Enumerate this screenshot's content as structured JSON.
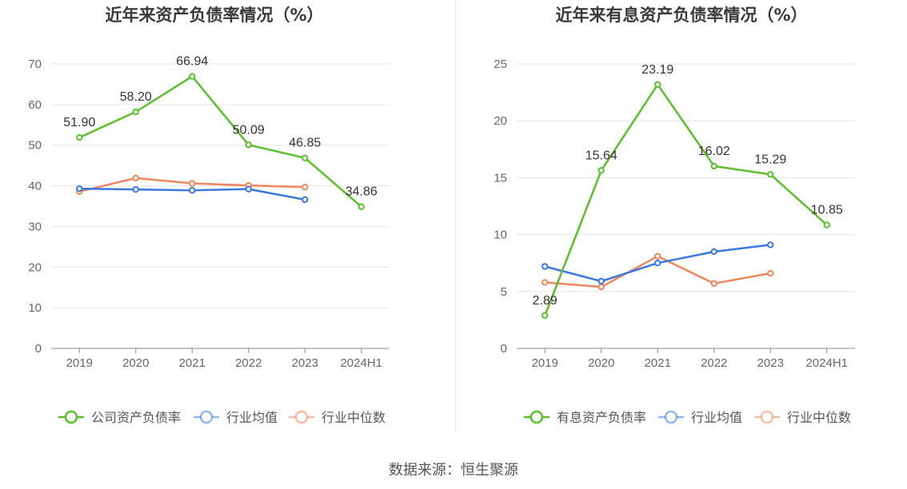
{
  "source_text": "数据来源：恒生聚源",
  "chart_data": [
    {
      "type": "line",
      "title": "近年来资产负债率情况（%）",
      "categories": [
        "2019",
        "2020",
        "2021",
        "2022",
        "2023",
        "2024H1"
      ],
      "ylim": [
        0,
        70
      ],
      "yticks": [
        0,
        10,
        20,
        30,
        40,
        50,
        60,
        70
      ],
      "grid": true,
      "legend": "bottom",
      "series": [
        {
          "name": "公司资产负债率",
          "color": "#5ac02a",
          "values": [
            51.9,
            58.2,
            66.94,
            50.09,
            46.85,
            34.86
          ],
          "labels": [
            "51.90",
            "58.20",
            "66.94",
            "50.09",
            "46.85",
            "34.86"
          ]
        },
        {
          "name": "行业均值",
          "color": "#3b78e0",
          "values": [
            39.3,
            39.1,
            38.9,
            39.2,
            36.6,
            null
          ]
        },
        {
          "name": "行业中位数",
          "color": "#f0865c",
          "values": [
            38.6,
            41.9,
            40.6,
            40.1,
            39.7,
            null
          ]
        }
      ]
    },
    {
      "type": "line",
      "title": "近年来有息资产负债率情况（%）",
      "categories": [
        "2019",
        "2020",
        "2021",
        "2022",
        "2023",
        "2024H1"
      ],
      "ylim": [
        0,
        25
      ],
      "yticks": [
        0,
        5,
        10,
        15,
        20,
        25
      ],
      "grid": true,
      "legend": "bottom",
      "series": [
        {
          "name": "有息资产负债率",
          "color": "#5ac02a",
          "values": [
            2.89,
            15.64,
            23.19,
            16.02,
            15.29,
            10.85
          ],
          "labels": [
            "2.89",
            "15.64",
            "23.19",
            "16.02",
            "15.29",
            "10.85"
          ]
        },
        {
          "name": "行业均值",
          "color": "#3b78e0",
          "values": [
            7.2,
            5.9,
            7.5,
            8.5,
            9.1,
            null
          ]
        },
        {
          "name": "行业中位数",
          "color": "#f0865c",
          "values": [
            5.8,
            5.4,
            8.1,
            5.7,
            6.6,
            null
          ]
        }
      ]
    }
  ]
}
